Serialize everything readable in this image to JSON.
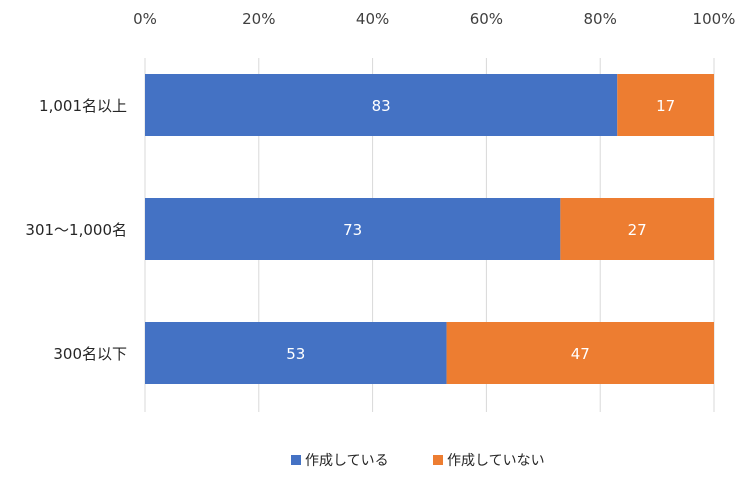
{
  "chart_data": {
    "type": "bar",
    "orientation": "horizontal",
    "stacked": "percent",
    "categories": [
      "1,001名以上",
      "301～1,000名",
      "300名以下"
    ],
    "series": [
      {
        "name": "作成している",
        "values": [
          83,
          73,
          53
        ],
        "labels": [
          "83",
          "73",
          "53"
        ],
        "color": "#4472C4"
      },
      {
        "name": "作成していない",
        "values": [
          17,
          27,
          47
        ],
        "labels": [
          "17",
          "27",
          "47"
        ],
        "color": "#ED7D31"
      }
    ],
    "xlim": [
      0,
      100
    ],
    "x_ticks": [
      0,
      20,
      40,
      60,
      80,
      100
    ],
    "x_tick_labels": [
      "0%",
      "20%",
      "40%",
      "60%",
      "80%",
      "100%"
    ],
    "x_axis_position": "top",
    "grid": true,
    "legend_position": "bottom"
  }
}
